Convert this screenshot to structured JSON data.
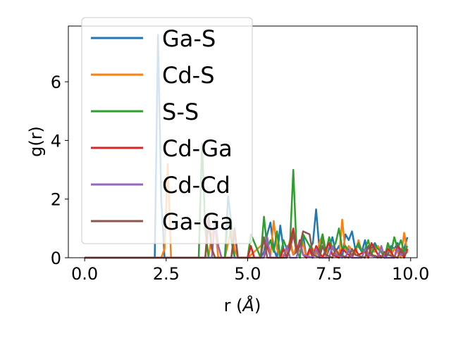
{
  "chart_data": {
    "type": "line",
    "xlabel": "r (",
    "xlabel_unit": "Å",
    "xlabel_close": ")",
    "ylabel": "g(r)",
    "xlim": [
      -0.5,
      10.2
    ],
    "ylim": [
      0,
      7.9
    ],
    "xticks": [
      0.0,
      2.5,
      5.0,
      7.5,
      10.0
    ],
    "xtick_labels": [
      "0.0",
      "2.5",
      "5.0",
      "7.5",
      "10.0"
    ],
    "yticks": [
      0,
      2,
      4,
      6
    ],
    "ytick_labels": [
      "0",
      "2",
      "4",
      "6"
    ],
    "grid": false,
    "legend_placement": "upper-left",
    "series": [
      {
        "name": "Ga-S",
        "color": "#1f77b4",
        "x": [
          0.0,
          2.15,
          2.25,
          2.35,
          2.45,
          3.5,
          4.3,
          4.4,
          4.5,
          4.6,
          5.0,
          5.4,
          5.5,
          5.6,
          5.7,
          5.8,
          5.9,
          6.0,
          6.1,
          6.2,
          6.3,
          6.4,
          6.5,
          6.6,
          6.7,
          6.8,
          6.9,
          7.0,
          7.1,
          7.2,
          7.3,
          7.4,
          7.5,
          7.6,
          7.7,
          7.8,
          7.9,
          8.0,
          8.1,
          8.2,
          8.3,
          8.4,
          8.5,
          8.6,
          8.7,
          8.8,
          8.9,
          9.0,
          9.1,
          9.2,
          9.3,
          9.4,
          9.5,
          9.6,
          9.7,
          9.8,
          9.9
        ],
        "y": [
          0.0,
          0.0,
          7.6,
          2.0,
          0.0,
          0.0,
          0.0,
          2.1,
          1.2,
          0.0,
          0.0,
          0.0,
          0.2,
          0.8,
          1.2,
          0.3,
          0.0,
          1.1,
          0.3,
          0.0,
          0.5,
          0.1,
          0.2,
          0.4,
          0.8,
          0.0,
          0.3,
          0.5,
          1.65,
          0.3,
          0.6,
          0.0,
          0.3,
          0.7,
          0.2,
          0.4,
          0.0,
          0.8,
          0.6,
          0.9,
          0.3,
          0.4,
          0.2,
          0.6,
          0.0,
          0.3,
          0.5,
          0.3,
          0.2,
          0.0,
          0.1,
          0.4,
          0.3,
          0.5,
          0.2,
          0.3,
          0.7
        ]
      },
      {
        "name": "Cd-S",
        "color": "#ff7f0e",
        "x": [
          0.0,
          2.35,
          2.45,
          2.55,
          2.65,
          3.8,
          3.9,
          4.0,
          4.1,
          4.3,
          4.5,
          4.6,
          4.7,
          5.0,
          5.5,
          5.6,
          5.7,
          5.8,
          5.9,
          6.0,
          6.2,
          6.3,
          6.4,
          6.5,
          6.6,
          6.7,
          6.8,
          7.0,
          7.1,
          7.2,
          7.3,
          7.4,
          7.5,
          7.6,
          7.7,
          7.8,
          7.9,
          8.0,
          8.1,
          8.3,
          8.4,
          8.5,
          8.6,
          8.7,
          8.8,
          8.9,
          9.0,
          9.2,
          9.3,
          9.4,
          9.5,
          9.6,
          9.7,
          9.8,
          9.9
        ],
        "y": [
          0.0,
          0.0,
          0.3,
          3.2,
          0.0,
          0.0,
          0.8,
          1.0,
          0.0,
          0.0,
          1.0,
          0.3,
          0.0,
          0.0,
          0.5,
          0.3,
          0.1,
          1.25,
          0.3,
          0.0,
          0.2,
          0.6,
          0.1,
          0.4,
          0.2,
          0.5,
          0.0,
          0.3,
          0.1,
          0.5,
          0.8,
          0.0,
          0.7,
          0.3,
          0.2,
          0.0,
          1.3,
          0.2,
          0.4,
          0.1,
          0.6,
          0.2,
          0.3,
          0.0,
          0.3,
          0.2,
          0.4,
          0.0,
          0.4,
          0.1,
          0.3,
          0.2,
          0.0,
          0.85,
          0.2
        ]
      },
      {
        "name": "S-S",
        "color": "#2ca02c",
        "x": [
          0.0,
          3.5,
          3.6,
          3.7,
          3.8,
          4.3,
          4.4,
          4.5,
          4.6,
          5.0,
          5.1,
          5.4,
          5.5,
          5.6,
          5.7,
          5.8,
          5.9,
          6.0,
          6.1,
          6.2,
          6.3,
          6.4,
          6.5,
          6.6,
          6.7,
          6.8,
          6.9,
          7.0,
          7.1,
          7.2,
          7.3,
          7.4,
          7.5,
          7.6,
          7.7,
          7.8,
          7.9,
          8.0,
          8.1,
          8.2,
          8.3,
          8.4,
          8.5,
          8.6,
          8.7,
          8.8,
          8.9,
          9.0,
          9.1,
          9.2,
          9.3,
          9.4,
          9.5,
          9.6,
          9.7,
          9.8,
          9.9
        ],
        "y": [
          0.0,
          0.0,
          3.9,
          1.0,
          0.0,
          0.0,
          1.4,
          0.6,
          0.0,
          0.0,
          0.8,
          0.0,
          1.4,
          0.3,
          0.6,
          0.2,
          0.9,
          0.0,
          0.6,
          0.3,
          0.5,
          3.0,
          0.3,
          0.0,
          0.8,
          0.6,
          0.4,
          0.0,
          0.3,
          0.1,
          0.8,
          0.2,
          0.7,
          0.3,
          0.5,
          1.0,
          0.3,
          0.4,
          0.2,
          0.1,
          0.3,
          0.5,
          0.2,
          0.3,
          0.6,
          0.1,
          0.4,
          0.3,
          0.2,
          0.0,
          0.5,
          0.2,
          0.7,
          0.3,
          0.6,
          0.2,
          0.4
        ]
      },
      {
        "name": "Cd-Ga",
        "color": "#d62728",
        "x": [
          0.0,
          3.7,
          3.8,
          3.9,
          4.0,
          4.5,
          4.6,
          4.7,
          5.0,
          5.1,
          5.2,
          5.5,
          5.6,
          5.7,
          6.0,
          6.1,
          6.2,
          6.3,
          6.4,
          6.5,
          6.6,
          6.7,
          6.8,
          6.9,
          7.0,
          7.1,
          7.2,
          7.3,
          7.4,
          7.5,
          7.6,
          7.8,
          7.9,
          8.0,
          8.2,
          8.3,
          8.4,
          8.6,
          8.7,
          8.8,
          8.9,
          9.0,
          9.2,
          9.3,
          9.4,
          9.5,
          9.6,
          9.7,
          9.8,
          9.9
        ],
        "y": [
          0.0,
          0.0,
          1.2,
          0.3,
          0.0,
          0.0,
          0.9,
          0.0,
          0.0,
          0.4,
          0.0,
          0.0,
          0.5,
          0.0,
          0.0,
          0.3,
          0.0,
          0.5,
          1.0,
          0.2,
          0.6,
          0.1,
          0.0,
          0.3,
          0.0,
          0.4,
          0.2,
          0.0,
          0.3,
          0.5,
          0.1,
          0.0,
          0.3,
          0.2,
          0.0,
          0.3,
          0.1,
          0.2,
          0.0,
          0.5,
          0.3,
          0.1,
          0.0,
          0.3,
          0.2,
          0.0,
          0.4,
          0.2,
          0.0,
          0.3
        ]
      },
      {
        "name": "Cd-Cd",
        "color": "#9467bd",
        "x": [
          0.0,
          3.9,
          4.0,
          4.1,
          4.2,
          5.5,
          5.6,
          5.7,
          6.1,
          6.2,
          6.3,
          6.5,
          6.6,
          6.7,
          7.0,
          7.1,
          7.2,
          7.5,
          7.6,
          7.7,
          8.0,
          8.1,
          8.2,
          8.5,
          8.6,
          8.7,
          9.0,
          9.1,
          9.2,
          9.5,
          9.6,
          9.7,
          9.9
        ],
        "y": [
          0.0,
          0.0,
          1.3,
          0.4,
          0.0,
          0.0,
          0.7,
          0.0,
          0.0,
          0.4,
          0.0,
          0.0,
          0.5,
          0.1,
          0.0,
          0.3,
          0.0,
          0.0,
          0.4,
          0.1,
          0.0,
          0.3,
          0.0,
          0.0,
          0.3,
          0.1,
          0.0,
          0.4,
          0.0,
          0.0,
          0.3,
          0.1,
          0.2
        ]
      },
      {
        "name": "Ga-Ga",
        "color": "#8c564b",
        "x": [
          0.0,
          3.7,
          3.8,
          3.9,
          4.0,
          4.5,
          4.6,
          4.7,
          5.4,
          5.5,
          5.6,
          6.2,
          6.3,
          6.4,
          6.5,
          6.6,
          6.7,
          6.8,
          6.9,
          7.0,
          7.2,
          7.3,
          7.4,
          7.6,
          7.7,
          7.8,
          8.1,
          8.2,
          8.3,
          8.6,
          8.7,
          8.8,
          9.1,
          9.2,
          9.3,
          9.6,
          9.7,
          9.8,
          9.9
        ],
        "y": [
          0.0,
          0.0,
          1.5,
          0.3,
          0.0,
          0.0,
          1.0,
          0.0,
          0.0,
          0.7,
          0.0,
          0.0,
          0.3,
          0.8,
          0.2,
          0.4,
          0.9,
          0.85,
          0.8,
          0.1,
          0.0,
          0.4,
          0.1,
          0.0,
          0.3,
          0.1,
          0.0,
          0.3,
          0.1,
          0.0,
          0.4,
          0.1,
          0.0,
          0.2,
          0.1,
          0.0,
          0.3,
          0.1,
          0.2
        ]
      }
    ]
  }
}
